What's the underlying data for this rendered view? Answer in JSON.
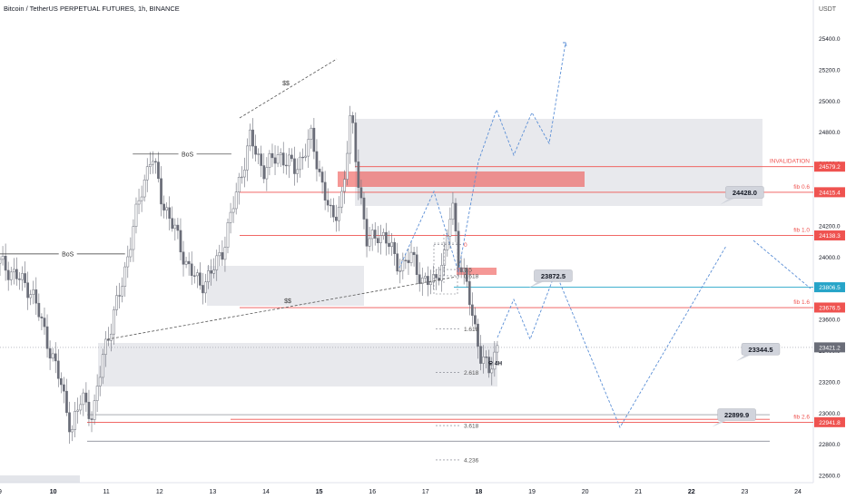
{
  "header": {
    "title": "Bitcoin / TetherUS PERPETUAL FUTURES, 1h, BINANCE"
  },
  "chart_data": {
    "type": "candlestick",
    "currency": "USDT",
    "y_ticks": [
      22600,
      22800,
      23000,
      23200,
      23400,
      23600,
      23800,
      24000,
      24200,
      24400,
      24600,
      24800,
      25000,
      25200,
      25400
    ],
    "y_tick_labels": [
      "22600.0",
      "22800.0",
      "23000.0",
      "23200.0",
      "23400.0",
      "23600.0",
      "23800.0",
      "24000.0",
      "24200.0",
      "24400.0",
      "24600.0",
      "24800.0",
      "25000.0",
      "25200.0",
      "25400.0"
    ],
    "ylim": [
      22560,
      25560
    ],
    "x_ticks": [
      9,
      10,
      11,
      12,
      13,
      14,
      15,
      16,
      17,
      18,
      19,
      20,
      21,
      22,
      23,
      24
    ],
    "x_tick_labels": [
      "9",
      "10",
      "11",
      "12",
      "13",
      "14",
      "15",
      "16",
      "17",
      "18",
      "19",
      "20",
      "21",
      "22",
      "23",
      "24"
    ],
    "bold_x_ticks": [
      10,
      15,
      18,
      22
    ],
    "xlim": [
      9.0,
      24.2
    ],
    "price_badges": [
      {
        "label": "INVALIDATION",
        "value": "24579.2",
        "price": 24579.2,
        "color": "#ef5350"
      },
      {
        "label": "fib 0.6",
        "value": "24415.4",
        "price": 24415.4,
        "color": "#ef5350"
      },
      {
        "label": "fib 1.0",
        "value": "24138.3",
        "price": 24138.3,
        "color": "#ef5350"
      },
      {
        "label": "",
        "value": "23806.5",
        "price": 23806.5,
        "color": "#26a4c8"
      },
      {
        "label": "fib 1.6",
        "value": "23676.5",
        "price": 23676.5,
        "color": "#ef5350"
      },
      {
        "label": "",
        "value": "23421.2",
        "price": 23421.2,
        "color": "#6a6d78"
      },
      {
        "label": "fib 2.6",
        "value": "22941.8",
        "price": 22941.8,
        "color": "#ef5350"
      }
    ],
    "callouts": [
      {
        "text": "24428.0",
        "x": 23.0,
        "price": 24415
      },
      {
        "text": "23872.5",
        "x": 19.4,
        "price": 23880
      },
      {
        "text": "23344.5",
        "x": 23.3,
        "price": 23410
      },
      {
        "text": "22899.9",
        "x": 22.85,
        "price": 22990
      }
    ],
    "annotations": [
      {
        "text": "BoS",
        "x": 9.2,
        "x2": 11.35,
        "price": 24020
      },
      {
        "text": "BoS",
        "x": 11.7,
        "x2": 13.35,
        "price": 24660
      },
      {
        "text": "$$",
        "x": 13.5,
        "x2": 15.35,
        "price": 25200
      },
      {
        "text": "$$",
        "x": 12.8,
        "x2": 16.3,
        "price": 23690
      }
    ],
    "fib_levels": [
      {
        "text": "0",
        "x": 17.7,
        "price": 24080
      },
      {
        "text": "0.5",
        "x": 17.7,
        "price": 23920
      },
      {
        "text": "0.618",
        "x": 17.7,
        "price": 23880
      },
      {
        "text": "1.618",
        "x": 17.7,
        "price": 23540
      },
      {
        "text": "2.618",
        "x": 17.7,
        "price": 23260
      },
      {
        "text": "3.618",
        "x": 17.7,
        "price": 22920
      },
      {
        "text": "4.236",
        "x": 17.7,
        "price": 22700
      }
    ],
    "tf_label": {
      "text": "ଳ 4H",
      "x": 18.1,
      "price": 23320
    }
  }
}
